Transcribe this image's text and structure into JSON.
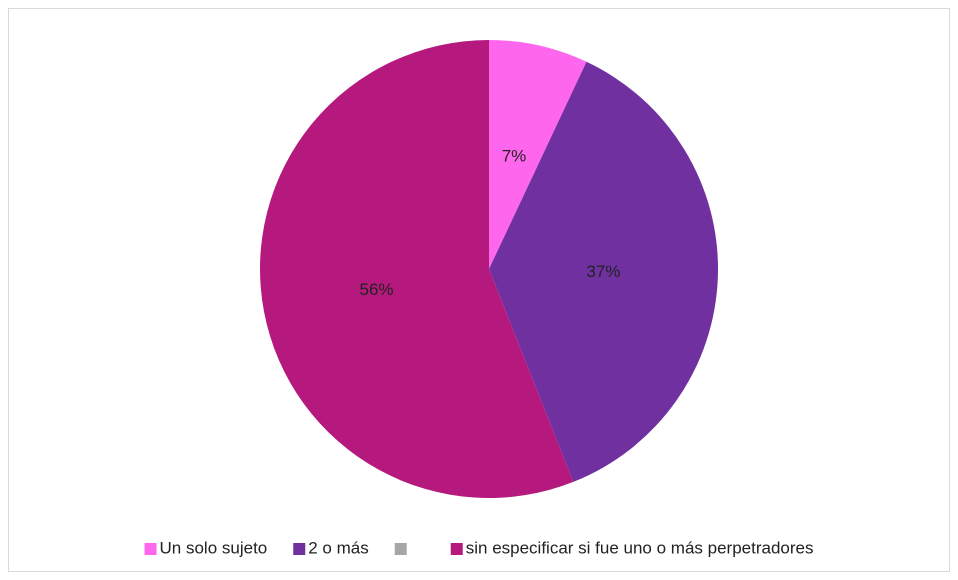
{
  "chart_data": {
    "type": "pie",
    "categories": [
      "Un solo sujeto",
      "2 o más",
      null,
      "sin especificar si fue uno o más perpetradores"
    ],
    "values": [
      7,
      37,
      0,
      56
    ],
    "value_labels": [
      "7%",
      "37%",
      null,
      "56%"
    ],
    "colors": [
      "#ff66ee",
      "#7030a0",
      "#a6a6a6",
      "#b5197e"
    ],
    "legend": "bottom"
  }
}
